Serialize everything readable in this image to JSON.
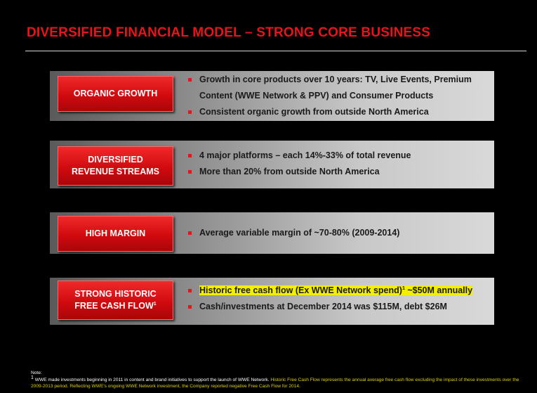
{
  "title": "DIVERSIFIED FINANCIAL MODEL – STRONG CORE BUSINESS",
  "rows": [
    {
      "label": "ORGANIC GROWTH",
      "bullets": [
        "Growth in core products over 10 years: TV, Live Events, Premium Content (WWE Network & PPV) and Consumer Products",
        "Consistent organic growth from outside North America"
      ]
    },
    {
      "label": "DIVERSIFIED REVENUE STREAMS",
      "bullets": [
        "4 major platforms – each 14%-33% of total revenue",
        "More than 20% from outside North America"
      ]
    },
    {
      "label": "HIGH MARGIN",
      "bullets": [
        "Average variable margin of ~70-80% (2009-2014)"
      ]
    },
    {
      "label": "STRONG HISTORIC FREE CASH FLOW",
      "label_sup": "1",
      "bullets": [
        "Historic free cash flow (Ex WWE Network spend)",
        "Cash/investments at December 2014 was $115M, debt $26M"
      ],
      "bullet1_sup": "1",
      "bullet1_tail": " ~$50M annually"
    }
  ],
  "note": {
    "heading": "Note:",
    "sup": "1",
    "text_white": "WWE made investments beginning in 2011 in content and brand initiatives to support the launch of WWE Network.",
    "text_yellow": "Historic Free Cash Flow represents the annual average free cash flow excluding the impact of these investments over the 2009-2013 period. Reflecting WWE's ongoing WWE Network investment, the Company reported negative Free Cash Flow for 2014."
  },
  "colors": {
    "accent": "#e8141b",
    "highlight": "#f2f000",
    "background": "#000000"
  }
}
